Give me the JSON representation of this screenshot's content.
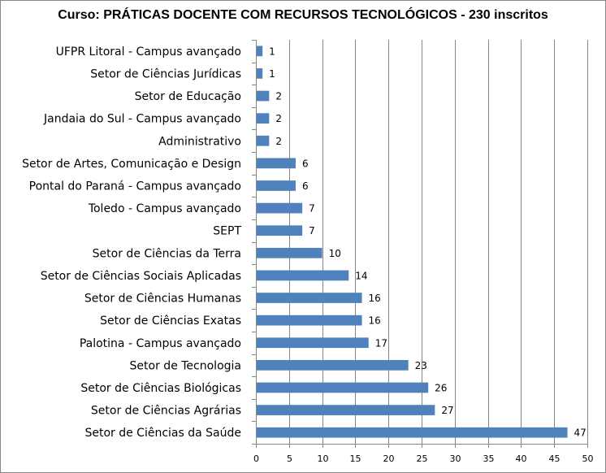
{
  "chart_data": {
    "type": "bar",
    "orientation": "horizontal",
    "title": "Curso: PRÁTICAS DOCENTE COM RECURSOS TECNOLÓGICOS - 230 inscritos",
    "categories": [
      "UFPR Litoral - Campus avançado",
      "Setor de Ciências Jurídicas",
      "Setor de Educação",
      "Jandaia do Sul - Campus avançado",
      "Administrativo",
      "Setor de Artes, Comunicação e Design",
      "Pontal do Paraná - Campus avançado",
      "Toledo - Campus avançado",
      "SEPT",
      "Setor de Ciências da Terra",
      "Setor de Ciências Sociais Aplicadas",
      "Setor de Ciências Humanas",
      "Setor de Ciências Exatas",
      "Palotina - Campus avançado",
      "Setor de Tecnologia",
      "Setor de Ciências Biológicas",
      "Setor de Ciências Agrárias",
      "Setor de Ciências da Saúde"
    ],
    "values": [
      1,
      1,
      2,
      2,
      2,
      6,
      6,
      7,
      7,
      10,
      14,
      16,
      16,
      17,
      23,
      26,
      27,
      47
    ],
    "xlim": [
      0,
      50
    ],
    "xticks": [
      0,
      5,
      10,
      15,
      20,
      25,
      30,
      35,
      40,
      45,
      50
    ],
    "gridlines": "vertical",
    "data_labels": true,
    "legend": "none",
    "bar_color": "#4f81bd"
  }
}
